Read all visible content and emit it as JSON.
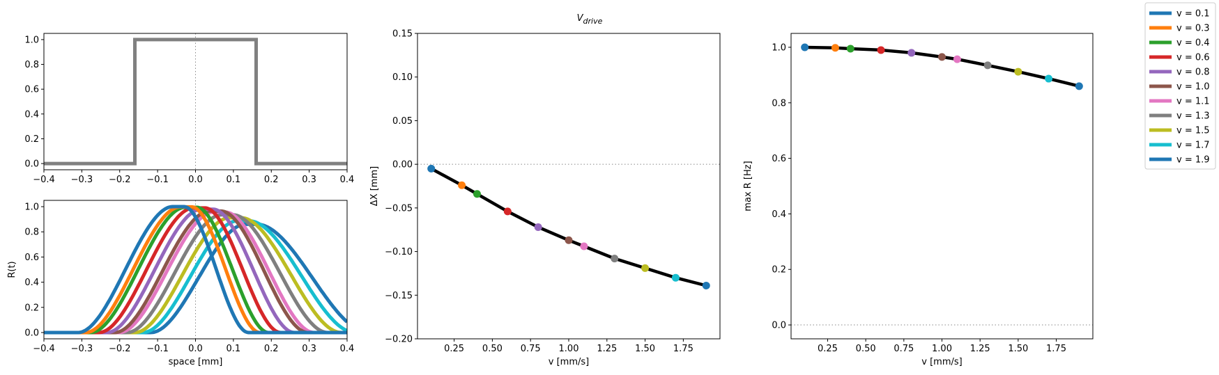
{
  "figure_title": "V_drive",
  "legend": {
    "placement": "top-right-outside",
    "entries": [
      {
        "label": "v = 0.1",
        "color": "#1f77b4"
      },
      {
        "label": "v = 0.3",
        "color": "#ff7f0e"
      },
      {
        "label": "v = 0.4",
        "color": "#2ca02c"
      },
      {
        "label": "v = 0.6",
        "color": "#d62728"
      },
      {
        "label": "v = 0.8",
        "color": "#9467bd"
      },
      {
        "label": "v = 1.0",
        "color": "#8c564b"
      },
      {
        "label": "v = 1.1",
        "color": "#e377c2"
      },
      {
        "label": "v = 1.3",
        "color": "#7f7f7f"
      },
      {
        "label": "v = 1.5",
        "color": "#bcbd22"
      },
      {
        "label": "v = 1.7",
        "color": "#17becf"
      },
      {
        "label": "v = 1.9",
        "color": "#1f77b4"
      }
    ]
  },
  "chart_data": [
    {
      "id": "stimulus",
      "type": "line",
      "xlabel": "",
      "ylabel": "",
      "xlim": [
        -0.4,
        0.4
      ],
      "ylim": [
        -0.05,
        1.05
      ],
      "xticks": [
        -0.4,
        -0.3,
        -0.2,
        -0.1,
        0.0,
        0.1,
        0.2,
        0.3,
        0.4
      ],
      "xticklabels": [
        "−0.4",
        "−0.3",
        "−0.2",
        "−0.1",
        "0.0",
        "0.1",
        "0.2",
        "0.3",
        "0.4"
      ],
      "yticks": [
        0.0,
        0.2,
        0.4,
        0.6,
        0.8,
        1.0
      ],
      "yticklabels": [
        "0.0",
        "0.2",
        "0.4",
        "0.6",
        "0.8",
        "1.0"
      ],
      "zero_line": {
        "axis": "x",
        "value": 0
      },
      "series": [
        {
          "color": "#808080",
          "x": [
            -0.4,
            -0.16,
            -0.16,
            0.16,
            0.16,
            0.4
          ],
          "y": [
            0,
            0,
            1,
            1,
            0,
            0
          ]
        }
      ]
    },
    {
      "id": "response",
      "type": "line",
      "xlabel": "space [mm]",
      "ylabel": "R(t)",
      "xlim": [
        -0.4,
        0.4
      ],
      "ylim": [
        -0.05,
        1.05
      ],
      "xticks": [
        -0.4,
        -0.3,
        -0.2,
        -0.1,
        0.0,
        0.1,
        0.2,
        0.3,
        0.4
      ],
      "xticklabels": [
        "−0.4",
        "−0.3",
        "−0.2",
        "−0.1",
        "0.0",
        "0.1",
        "0.2",
        "0.3",
        "0.4"
      ],
      "yticks": [
        0.0,
        0.2,
        0.4,
        0.6,
        0.8,
        1.0
      ],
      "yticklabels": [
        "0.0",
        "0.2",
        "0.4",
        "0.6",
        "0.8",
        "1.0"
      ],
      "zero_line": {
        "axis": "x",
        "value": 0
      },
      "curve_model": "bump",
      "x": [
        -0.4,
        -0.3,
        -0.28,
        -0.26,
        -0.24,
        -0.22,
        -0.2,
        -0.18,
        -0.16,
        -0.14,
        -0.12,
        -0.1,
        -0.08,
        -0.06,
        -0.04,
        -0.02,
        0.0,
        0.02,
        0.04,
        0.06,
        0.08,
        0.1,
        0.12,
        0.14,
        0.16,
        0.18,
        0.2,
        0.22,
        0.24,
        0.26,
        0.28,
        0.3,
        0.32,
        0.34,
        0.36,
        0.38,
        0.4
      ],
      "series": [
        {
          "name": "v = 0.1",
          "color": "#1f77b4",
          "shift": -0.06,
          "peak": 1.0,
          "fall_width": 0.17
        },
        {
          "name": "v = 0.3",
          "color": "#ff7f0e",
          "shift": -0.04,
          "peak": 0.998,
          "fall_width": 0.18
        },
        {
          "name": "v = 0.4",
          "color": "#2ca02c",
          "shift": -0.027,
          "peak": 0.995,
          "fall_width": 0.19
        },
        {
          "name": "v = 0.6",
          "color": "#d62728",
          "shift": -0.005,
          "peak": 0.99,
          "fall_width": 0.2
        },
        {
          "name": "v = 0.8",
          "color": "#9467bd",
          "shift": 0.016,
          "peak": 0.98,
          "fall_width": 0.215
        },
        {
          "name": "v = 1.0",
          "color": "#8c564b",
          "shift": 0.037,
          "peak": 0.965,
          "fall_width": 0.23
        },
        {
          "name": "v = 1.1",
          "color": "#e377c2",
          "shift": 0.048,
          "peak": 0.957,
          "fall_width": 0.235
        },
        {
          "name": "v = 1.3",
          "color": "#7f7f7f",
          "shift": 0.069,
          "peak": 0.935,
          "fall_width": 0.25
        },
        {
          "name": "v = 1.5",
          "color": "#bcbd22",
          "shift": 0.09,
          "peak": 0.912,
          "fall_width": 0.265
        },
        {
          "name": "v = 1.7",
          "color": "#17becf",
          "shift": 0.111,
          "peak": 0.887,
          "fall_width": 0.28
        },
        {
          "name": "v = 1.9",
          "color": "#1f77b4",
          "shift": 0.132,
          "peak": 0.86,
          "fall_width": 0.295
        }
      ]
    },
    {
      "id": "delta_x",
      "type": "line",
      "xlabel": "v [mm/s]",
      "ylabel": "ΔX [mm]",
      "xlim": [
        0.01,
        1.99
      ],
      "ylim": [
        -0.2,
        0.15
      ],
      "xticks": [
        0.25,
        0.5,
        0.75,
        1.0,
        1.25,
        1.5,
        1.75
      ],
      "xticklabels": [
        "0.25",
        "0.50",
        "0.75",
        "1.00",
        "1.25",
        "1.50",
        "1.75"
      ],
      "yticks": [
        -0.2,
        -0.15,
        -0.1,
        -0.05,
        0.0,
        0.05,
        0.1,
        0.15
      ],
      "yticklabels": [
        "−0.20",
        "−0.15",
        "−0.10",
        "−0.05",
        "0.00",
        "0.05",
        "0.10",
        "0.15"
      ],
      "zero_line": {
        "axis": "y",
        "value": 0
      },
      "line_color": "#000000",
      "x": [
        0.1,
        0.3,
        0.4,
        0.6,
        0.8,
        1.0,
        1.1,
        1.3,
        1.5,
        1.7,
        1.9
      ],
      "y": [
        -0.005,
        -0.024,
        -0.034,
        -0.054,
        -0.072,
        -0.087,
        -0.094,
        -0.108,
        -0.119,
        -0.13,
        -0.139
      ],
      "point_colors": [
        "#1f77b4",
        "#ff7f0e",
        "#2ca02c",
        "#d62728",
        "#9467bd",
        "#8c564b",
        "#e377c2",
        "#7f7f7f",
        "#bcbd22",
        "#17becf",
        "#1f77b4"
      ]
    },
    {
      "id": "max_r",
      "type": "line",
      "xlabel": "v [mm/s]",
      "ylabel": "max R [Hz]",
      "xlim": [
        0.01,
        1.99
      ],
      "ylim": [
        -0.05,
        1.05
      ],
      "xticks": [
        0.25,
        0.5,
        0.75,
        1.0,
        1.25,
        1.5,
        1.75
      ],
      "xticklabels": [
        "0.25",
        "0.50",
        "0.75",
        "1.00",
        "1.25",
        "1.50",
        "1.75"
      ],
      "yticks": [
        0.0,
        0.2,
        0.4,
        0.6,
        0.8,
        1.0
      ],
      "yticklabels": [
        "0.0",
        "0.2",
        "0.4",
        "0.6",
        "0.8",
        "1.0"
      ],
      "zero_line": {
        "axis": "y",
        "value": 0
      },
      "line_color": "#000000",
      "x": [
        0.1,
        0.3,
        0.4,
        0.6,
        0.8,
        1.0,
        1.1,
        1.3,
        1.5,
        1.7,
        1.9
      ],
      "y": [
        1.0,
        0.998,
        0.995,
        0.99,
        0.98,
        0.965,
        0.957,
        0.935,
        0.912,
        0.887,
        0.86
      ],
      "point_colors": [
        "#1f77b4",
        "#ff7f0e",
        "#2ca02c",
        "#d62728",
        "#9467bd",
        "#8c564b",
        "#e377c2",
        "#7f7f7f",
        "#bcbd22",
        "#17becf",
        "#1f77b4"
      ]
    }
  ]
}
